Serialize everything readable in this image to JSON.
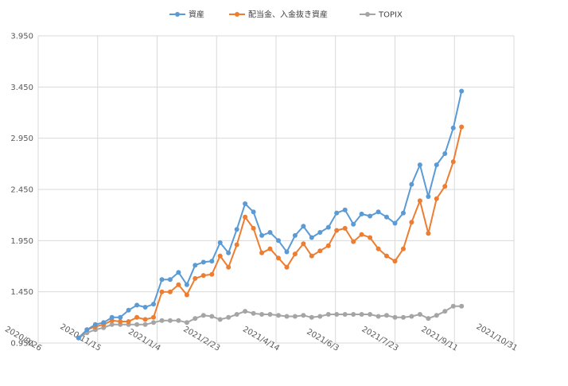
{
  "chart_data": {
    "type": "line",
    "title": "",
    "xlabel": "",
    "ylabel": "",
    "ylim": [
      0.95,
      3.95
    ],
    "yticks": [
      "0.950",
      "1.450",
      "1.950",
      "2.450",
      "2.950",
      "3.450",
      "3.950"
    ],
    "xlim": [
      "2020/9/26",
      "2021/10/31"
    ],
    "xticks": [
      "2020/9/26",
      "2020/11/15",
      "2021/1/4",
      "2021/2/23",
      "2021/4/14",
      "2021/6/3",
      "2021/7/23",
      "2021/9/11",
      "2021/10/31"
    ],
    "grid": true,
    "legend": "top",
    "x": [
      "2020/10/30",
      "2020/11/6",
      "2020/11/13",
      "2020/11/20",
      "2020/11/27",
      "2020/12/4",
      "2020/12/11",
      "2020/12/18",
      "2020/12/25",
      "2021/1/1",
      "2021/1/8",
      "2021/1/15",
      "2021/1/22",
      "2021/1/29",
      "2021/2/5",
      "2021/2/12",
      "2021/2/19",
      "2021/2/26",
      "2021/3/5",
      "2021/3/12",
      "2021/3/19",
      "2021/3/26",
      "2021/4/2",
      "2021/4/9",
      "2021/4/16",
      "2021/4/23",
      "2021/4/30",
      "2021/5/7",
      "2021/5/14",
      "2021/5/21",
      "2021/5/28",
      "2021/6/4",
      "2021/6/11",
      "2021/6/18",
      "2021/6/25",
      "2021/7/2",
      "2021/7/9",
      "2021/7/16",
      "2021/7/23",
      "2021/7/30",
      "2021/8/6",
      "2021/8/13",
      "2021/8/20",
      "2021/8/27",
      "2021/9/3",
      "2021/9/10",
      "2021/9/17"
    ],
    "series": [
      {
        "name": "資産",
        "color": "#5B9BD5",
        "values": [
          1.0,
          1.08,
          1.13,
          1.15,
          1.2,
          1.2,
          1.27,
          1.32,
          1.3,
          1.33,
          1.57,
          1.57,
          1.64,
          1.52,
          1.71,
          1.74,
          1.75,
          1.93,
          1.83,
          2.06,
          2.31,
          2.23,
          2.0,
          2.03,
          1.95,
          1.84,
          2.0,
          2.09,
          1.98,
          2.03,
          2.08,
          2.22,
          2.25,
          2.11,
          2.21,
          2.19,
          2.23,
          2.18,
          2.12,
          2.22,
          2.5,
          2.69,
          2.38,
          2.69,
          2.8,
          3.05,
          3.41
        ]
      },
      {
        "name": "配当金、入金抜き資産",
        "color": "#ED7D31",
        "values": [
          1.0,
          1.08,
          1.11,
          1.13,
          1.17,
          1.16,
          1.16,
          1.2,
          1.18,
          1.2,
          1.45,
          1.45,
          1.52,
          1.42,
          1.58,
          1.61,
          1.62,
          1.8,
          1.69,
          1.91,
          2.18,
          2.07,
          1.83,
          1.87,
          1.78,
          1.69,
          1.82,
          1.92,
          1.8,
          1.85,
          1.9,
          2.05,
          2.07,
          1.94,
          2.01,
          1.98,
          1.87,
          1.8,
          1.75,
          1.87,
          2.13,
          2.34,
          2.02,
          2.36,
          2.48,
          2.72,
          3.06
        ]
      },
      {
        "name": "TOPIX",
        "color": "#A5A5A5",
        "values": [
          1.0,
          1.05,
          1.08,
          1.1,
          1.13,
          1.13,
          1.13,
          1.13,
          1.13,
          1.15,
          1.17,
          1.17,
          1.17,
          1.15,
          1.19,
          1.22,
          1.21,
          1.18,
          1.2,
          1.23,
          1.26,
          1.24,
          1.23,
          1.23,
          1.22,
          1.21,
          1.21,
          1.22,
          1.2,
          1.21,
          1.23,
          1.23,
          1.23,
          1.23,
          1.23,
          1.23,
          1.21,
          1.22,
          1.2,
          1.2,
          1.21,
          1.23,
          1.19,
          1.22,
          1.26,
          1.31,
          1.31
        ]
      }
    ]
  }
}
